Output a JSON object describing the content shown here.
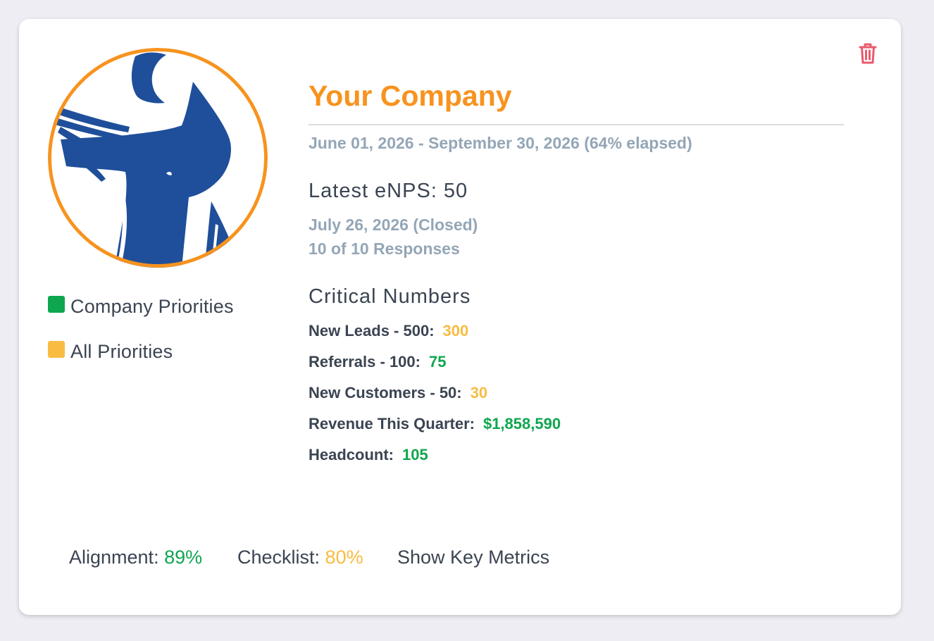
{
  "colors": {
    "accent": "#f7931e",
    "green": "#0ea64f",
    "yellow": "#f9bc42",
    "delete": "#ea5a6e",
    "logo_blue": "#1f4f9a"
  },
  "icons": {
    "delete": "trash-icon"
  },
  "company": {
    "name": "Your Company",
    "date_range": "June 01, 2026 - September 30, 2026 (64% elapsed)"
  },
  "legend": [
    {
      "label": "Company Priorities",
      "color": "#0ea64f"
    },
    {
      "label": "All Priorities",
      "color": "#f9bc42"
    }
  ],
  "enps": {
    "heading": "Latest eNPS: 50",
    "date_status": "July 26, 2026 (Closed)",
    "responses": "10 of 10 Responses"
  },
  "critical_numbers": {
    "heading": "Critical Numbers",
    "items": [
      {
        "label": "New Leads - 500:",
        "value": "300",
        "status": "yellow"
      },
      {
        "label": "Referrals - 100:",
        "value": "75",
        "status": "green"
      },
      {
        "label": "New Customers - 50:",
        "value": "30",
        "status": "yellow"
      },
      {
        "label": "Revenue This Quarter:",
        "value": "$1,858,590",
        "status": "green"
      },
      {
        "label": "Headcount:",
        "value": "105",
        "status": "green"
      }
    ]
  },
  "footer": {
    "alignment_label": "Alignment:",
    "alignment_value": "89%",
    "checklist_label": "Checklist:",
    "checklist_value": "80%",
    "show_metrics": "Show Key Metrics"
  }
}
